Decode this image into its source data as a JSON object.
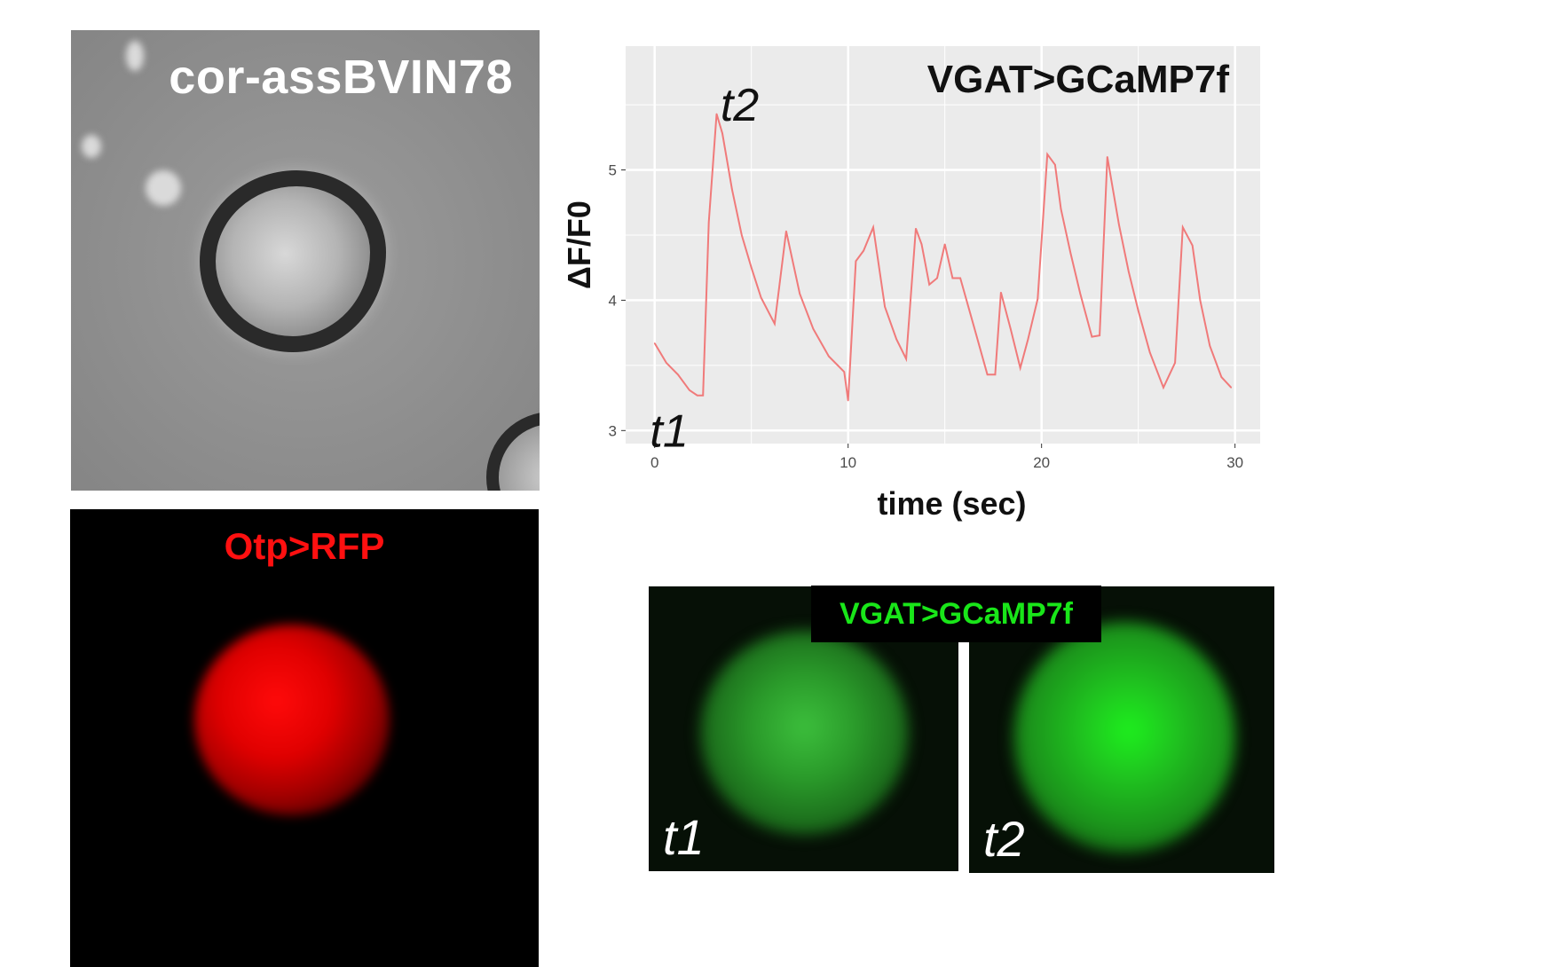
{
  "brightfield": {
    "label": "cor-assBVIN78"
  },
  "rfp": {
    "label": "Otp>RFP"
  },
  "gcamp": {
    "title": "VGAT>GCaMP7f",
    "panels": [
      {
        "label": "t1"
      },
      {
        "label": "t2"
      }
    ]
  },
  "colors": {
    "trace": "#f07a7a",
    "plot_bg": "#ebebeb",
    "grid": "#ffffff",
    "rfp": "#ff1010",
    "gfp": "#19e619"
  },
  "chart_data": {
    "type": "line",
    "title": "VGAT>GCaMP7f",
    "xlabel": "time (sec)",
    "ylabel": "ΔF/F0",
    "xlim": [
      -1.5,
      31.3
    ],
    "ylim": [
      2.9,
      5.95
    ],
    "xticks": [
      0,
      10,
      20,
      30
    ],
    "yticks": [
      3,
      4,
      5
    ],
    "grid": true,
    "annotations": [
      {
        "text": "t1",
        "x": 0.4,
        "y": 3.0
      },
      {
        "text": "t2",
        "x": 3.4,
        "y": 5.5
      }
    ],
    "series": [
      {
        "x": [
          0,
          0.6,
          1.2,
          1.8,
          2.2,
          2.5,
          2.8,
          3.2,
          3.5,
          4.0,
          4.5,
          5.0,
          5.5,
          6.2,
          6.8,
          7.5,
          8.2,
          9.0,
          9.8,
          10.0,
          10.4,
          10.8,
          11.3,
          11.9,
          12.5,
          13.0,
          13.5,
          13.8,
          14.2,
          14.6,
          15.0,
          15.4,
          15.8,
          16.5,
          17.2,
          17.6,
          17.9,
          18.4,
          18.9,
          19.3,
          19.8,
          20.3,
          20.7,
          21.0,
          21.5,
          22.0,
          22.6,
          23.0,
          23.4,
          24.0,
          24.5,
          25.0,
          25.6,
          26.3,
          26.9,
          27.3,
          27.8,
          28.2,
          28.7,
          29.3,
          29.8
        ],
        "y": [
          3.67,
          3.52,
          3.43,
          3.31,
          3.27,
          3.27,
          4.6,
          5.43,
          5.28,
          4.85,
          4.5,
          4.25,
          4.02,
          3.82,
          4.53,
          4.05,
          3.78,
          3.57,
          3.45,
          3.23,
          4.3,
          4.38,
          4.56,
          3.95,
          3.7,
          3.55,
          4.55,
          4.43,
          4.12,
          4.17,
          4.43,
          4.17,
          4.17,
          3.8,
          3.43,
          3.43,
          4.06,
          3.78,
          3.48,
          3.7,
          4.01,
          5.12,
          5.04,
          4.7,
          4.36,
          4.05,
          3.72,
          3.73,
          5.1,
          4.58,
          4.22,
          3.92,
          3.6,
          3.33,
          3.52,
          4.56,
          4.42,
          4.0,
          3.65,
          3.41,
          3.33
        ]
      }
    ]
  }
}
